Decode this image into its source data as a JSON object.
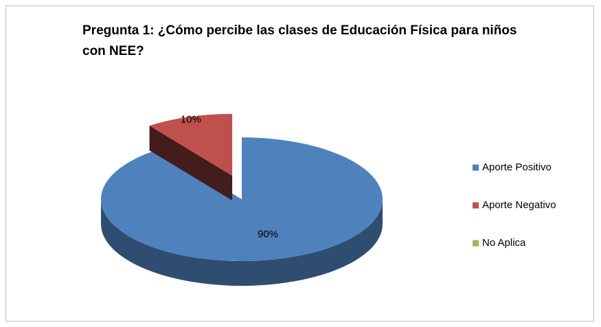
{
  "chart_data": {
    "type": "pie",
    "title": "Pregunta 1: ¿Cómo percibe las clases de Educación Física para niños con NEE?",
    "categories": [
      "Aporte Positivo",
      "Aporte Negativo",
      "No Aplica"
    ],
    "values": [
      90,
      10,
      0
    ],
    "value_labels": [
      "90%",
      "10%",
      null
    ],
    "colors": [
      "#4f81bd",
      "#c0504d",
      "#9bbb59"
    ],
    "exploded": [
      false,
      true,
      false
    ],
    "legend": "right"
  }
}
